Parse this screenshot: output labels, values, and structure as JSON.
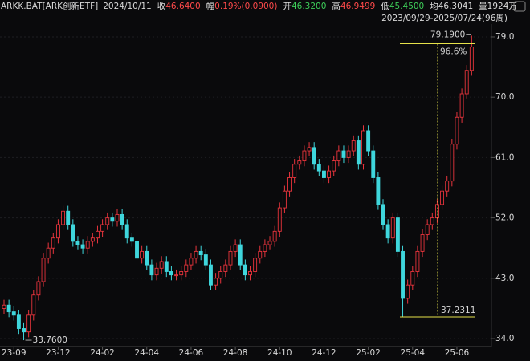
{
  "chart_data": {
    "type": "candlestick",
    "title": "ARKK.BAT[ARK创新ETF]",
    "date": "2024/10/11",
    "header": [
      {
        "label": "收",
        "value": "46.6400",
        "color": "#ff4a4a"
      },
      {
        "label": "幅",
        "value": "0.19%(0.0900)",
        "color": "#ff4a4a"
      },
      {
        "label": "开",
        "value": "46.3200",
        "color": "#3ecf5a"
      },
      {
        "label": "高",
        "value": "46.9499",
        "color": "#ff4a4a"
      },
      {
        "label": "低",
        "value": "45.4500",
        "color": "#3ecf5a"
      },
      {
        "label": "均",
        "value": "46.3041",
        "color": "#dddddd"
      },
      {
        "label": "量",
        "value": "1924万",
        "color": "#dddddd"
      }
    ],
    "subtitle": "2023/09/29-2025/07/24(96周)",
    "categories": [
      null,
      null,
      "23-09",
      null,
      null,
      null,
      null,
      null,
      null,
      null,
      null,
      "23-12",
      null,
      null,
      null,
      null,
      null,
      null,
      null,
      null,
      "24-02",
      null,
      null,
      null,
      null,
      null,
      null,
      null,
      null,
      "24-04",
      null,
      null,
      null,
      null,
      null,
      null,
      null,
      null,
      "24-06",
      null,
      null,
      null,
      null,
      null,
      null,
      null,
      null,
      "24-08",
      null,
      null,
      null,
      null,
      null,
      null,
      null,
      null,
      "24-10",
      null,
      null,
      null,
      null,
      null,
      null,
      null,
      null,
      "24-12",
      null,
      null,
      null,
      null,
      null,
      null,
      null,
      null,
      "25-02",
      null,
      null,
      null,
      null,
      null,
      null,
      null,
      null,
      "25-04",
      null,
      null,
      null,
      null,
      null,
      null,
      null,
      null,
      "25-06",
      null,
      null,
      null
    ],
    "open": [
      38.5,
      39.0,
      38.0,
      37.5,
      35.5,
      35.0,
      37.5,
      40.5,
      42.5,
      46.0,
      47.5,
      49.0,
      51.0,
      53.0,
      51.0,
      48.5,
      48.0,
      47.5,
      48.5,
      49.0,
      50.0,
      51.0,
      52.0,
      51.5,
      52.5,
      51.0,
      49.0,
      48.5,
      46.0,
      47.0,
      45.0,
      43.5,
      44.5,
      45.5,
      44.0,
      43.5,
      43.5,
      44.0,
      45.0,
      46.0,
      47.0,
      46.5,
      45.0,
      42.0,
      43.0,
      44.0,
      45.0,
      47.0,
      48.0,
      45.0,
      43.5,
      44.0,
      46.0,
      47.0,
      48.0,
      48.5,
      50.0,
      53.5,
      56.0,
      58.0,
      60.0,
      60.5,
      62.0,
      62.5,
      60.0,
      59.0,
      58.0,
      59.0,
      60.5,
      62.0,
      61.0,
      62.0,
      63.5,
      60.0,
      65.0,
      62.0,
      58.0,
      54.0,
      51.0,
      49.0,
      52.0,
      47.0,
      40.0,
      42.0,
      44.0,
      47.0,
      49.5,
      51.0,
      52.0,
      54.0,
      56.0,
      57.5,
      63.0,
      67.0,
      70.5,
      74.0
    ],
    "high": [
      39.8,
      39.8,
      38.8,
      38.3,
      36.3,
      38.3,
      41.3,
      43.3,
      46.8,
      48.3,
      49.8,
      51.8,
      53.8,
      53.8,
      51.8,
      49.3,
      48.8,
      49.3,
      49.8,
      50.8,
      51.8,
      52.8,
      52.8,
      53.3,
      53.3,
      51.8,
      49.8,
      49.3,
      47.8,
      47.8,
      45.8,
      45.3,
      46.3,
      46.3,
      44.8,
      44.3,
      44.8,
      45.8,
      46.8,
      47.8,
      47.8,
      47.3,
      45.8,
      43.8,
      44.8,
      45.8,
      47.8,
      48.8,
      48.8,
      45.8,
      44.8,
      46.8,
      47.8,
      48.8,
      49.3,
      50.8,
      54.3,
      56.8,
      58.8,
      60.8,
      61.3,
      62.8,
      63.3,
      63.3,
      60.8,
      59.8,
      59.8,
      61.3,
      62.8,
      62.8,
      62.8,
      64.3,
      64.3,
      65.8,
      65.8,
      62.8,
      58.8,
      54.8,
      51.8,
      52.8,
      52.8,
      47.8,
      42.8,
      44.8,
      47.8,
      50.3,
      51.8,
      52.8,
      54.8,
      56.8,
      58.3,
      63.8,
      67.8,
      71.3,
      74.8,
      79.19
    ],
    "low": [
      37.7,
      37.2,
      36.7,
      34.7,
      33.76,
      34.2,
      36.7,
      39.7,
      41.7,
      45.2,
      46.7,
      48.2,
      50.2,
      50.2,
      47.7,
      47.2,
      46.7,
      46.7,
      47.7,
      48.2,
      49.2,
      50.2,
      50.7,
      50.7,
      50.2,
      48.2,
      47.7,
      45.2,
      45.2,
      44.2,
      42.7,
      42.7,
      43.7,
      43.2,
      42.7,
      42.7,
      42.7,
      43.2,
      44.2,
      45.2,
      45.7,
      44.2,
      41.2,
      41.2,
      42.2,
      43.2,
      44.2,
      46.2,
      44.2,
      42.7,
      42.7,
      43.2,
      45.2,
      46.2,
      47.2,
      47.7,
      49.2,
      52.7,
      55.2,
      57.2,
      59.2,
      59.7,
      61.2,
      59.2,
      58.2,
      57.2,
      57.2,
      58.2,
      59.7,
      60.2,
      60.2,
      61.2,
      59.2,
      59.2,
      61.2,
      57.2,
      53.2,
      50.2,
      48.2,
      48.2,
      46.2,
      37.2311,
      39.2,
      41.2,
      43.2,
      46.2,
      48.7,
      50.2,
      51.2,
      53.2,
      55.2,
      56.7,
      62.2,
      66.2,
      69.7,
      73.2
    ],
    "close": [
      39.0,
      38.0,
      37.5,
      35.5,
      35.0,
      37.5,
      40.5,
      42.5,
      46.0,
      47.5,
      49.0,
      51.0,
      53.0,
      51.0,
      48.5,
      48.0,
      47.5,
      48.5,
      49.0,
      50.0,
      51.0,
      52.0,
      51.5,
      52.5,
      51.0,
      49.0,
      48.5,
      46.0,
      47.0,
      45.0,
      43.5,
      44.5,
      45.5,
      44.0,
      43.5,
      43.5,
      44.0,
      45.0,
      46.0,
      47.0,
      46.5,
      45.0,
      42.0,
      43.0,
      44.0,
      45.0,
      47.0,
      48.0,
      45.0,
      43.5,
      44.0,
      46.0,
      47.0,
      48.0,
      48.5,
      50.0,
      53.5,
      56.0,
      58.0,
      60.0,
      60.5,
      62.0,
      62.5,
      60.0,
      59.0,
      58.0,
      59.0,
      60.5,
      62.0,
      61.0,
      62.0,
      63.5,
      60.0,
      65.0,
      62.0,
      58.0,
      54.0,
      51.0,
      49.0,
      52.0,
      47.0,
      40.0,
      42.0,
      44.0,
      47.0,
      49.5,
      51.0,
      52.0,
      54.0,
      56.0,
      57.5,
      63.0,
      67.0,
      70.5,
      74.0,
      77.5
    ],
    "up_color": "#e8343c",
    "down_color": "#3fd6dc",
    "range_color": "#e6e24a",
    "max_label": "79.1900",
    "min_label": "33.7600",
    "range_low_label": "37.2311",
    "range_change_label": "96.6%",
    "ylim": [
      33,
      82
    ],
    "yticks": [
      {
        "value": 79,
        "label": "79.0"
      },
      {
        "value": 70,
        "label": "70.0"
      },
      {
        "value": 61,
        "label": "61.0"
      },
      {
        "value": 52,
        "label": "52.0"
      },
      {
        "value": 43,
        "label": "43.0"
      },
      {
        "value": 34,
        "label": "34.0"
      }
    ],
    "grid": true
  }
}
